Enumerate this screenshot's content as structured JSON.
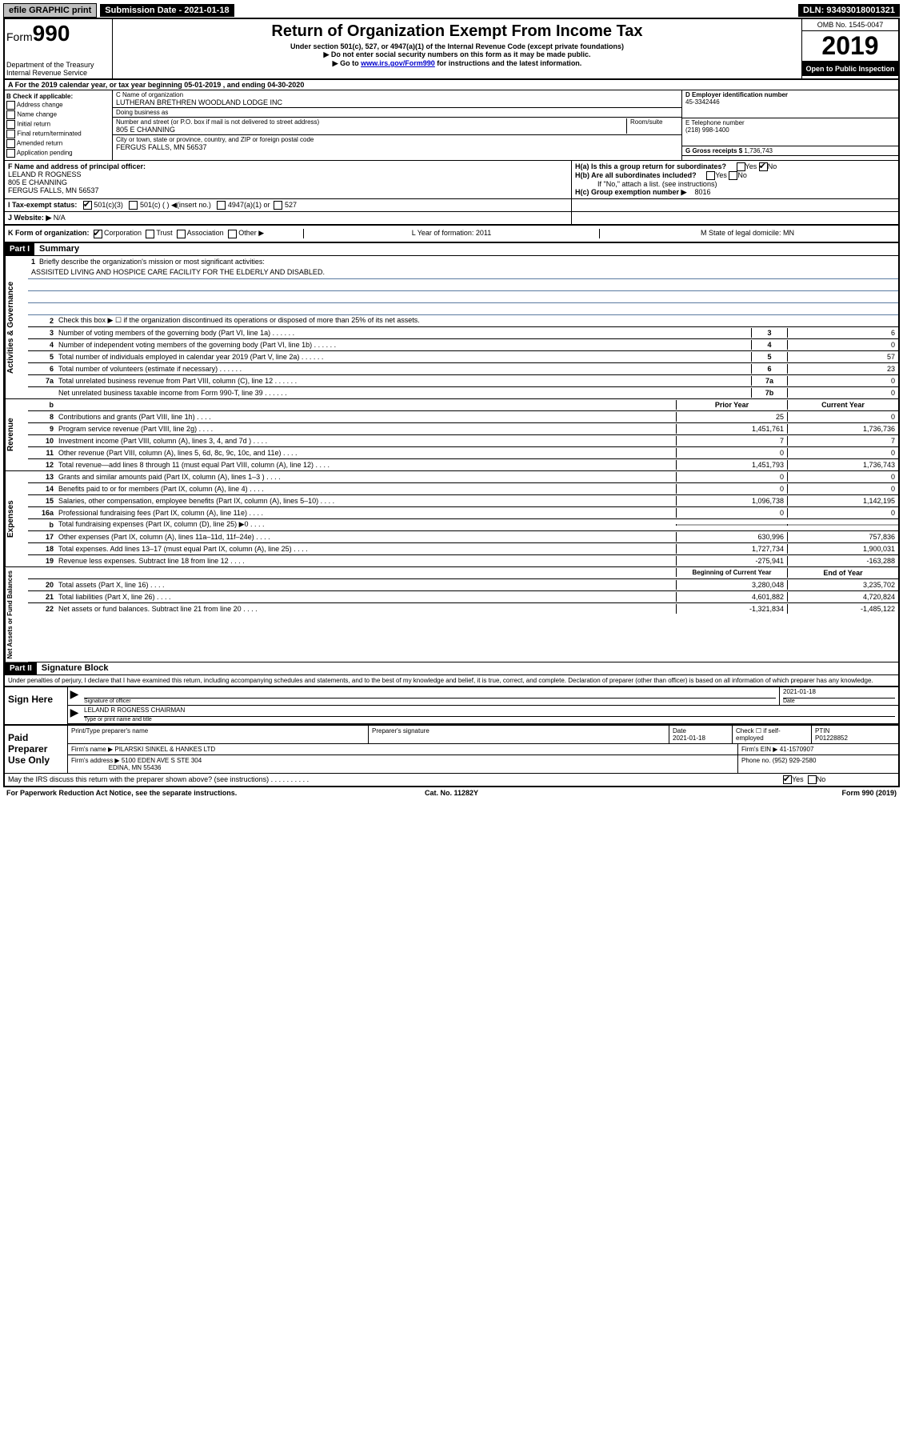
{
  "top": {
    "efile": "efile GRAPHIC print",
    "submission": "Submission Date - 2021-01-18",
    "dln": "DLN: 93493018001321"
  },
  "header": {
    "form_prefix": "Form",
    "form_number": "990",
    "title": "Return of Organization Exempt From Income Tax",
    "subtitle1": "Under section 501(c), 527, or 4947(a)(1) of the Internal Revenue Code (except private foundations)",
    "subtitle2": "▶ Do not enter social security numbers on this form as it may be made public.",
    "subtitle3_pre": "▶ Go to ",
    "subtitle3_link": "www.irs.gov/Form990",
    "subtitle3_post": " for instructions and the latest information.",
    "dept": "Department of the Treasury\nInternal Revenue Service",
    "omb": "OMB No. 1545-0047",
    "year": "2019",
    "open": "Open to Public Inspection"
  },
  "line_a": "A For the 2019 calendar year, or tax year beginning 05-01-2019    , and ending 04-30-2020",
  "b": {
    "label": "B Check if applicable:",
    "opts": [
      "Address change",
      "Name change",
      "Initial return",
      "Final return/terminated",
      "Amended return",
      "Application pending"
    ]
  },
  "c": {
    "name_label": "C Name of organization",
    "name": "LUTHERAN BRETHREN WOODLAND LODGE INC",
    "dba_label": "Doing business as",
    "dba": "",
    "addr_label": "Number and street (or P.O. box if mail is not delivered to street address)",
    "room_label": "Room/suite",
    "addr": "805 E CHANNING",
    "city_label": "City or town, state or province, country, and ZIP or foreign postal code",
    "city": "FERGUS FALLS, MN  56537"
  },
  "d": {
    "label": "D Employer identification number",
    "val": "45-3342446"
  },
  "e": {
    "label": "E Telephone number",
    "val": "(218) 998-1400"
  },
  "g": {
    "label": "G Gross receipts $",
    "val": "1,736,743"
  },
  "f": {
    "label": "F  Name and address of principal officer:",
    "name": "LELAND R ROGNESS",
    "addr1": "805 E CHANNING",
    "addr2": "FERGUS FALLS, MN  56537"
  },
  "h": {
    "a": "H(a)  Is this a group return for subordinates?",
    "b": "H(b)  Are all subordinates included?",
    "note": "If \"No,\" attach a list. (see instructions)",
    "c": "H(c)  Group exemption number ▶",
    "c_val": "8016"
  },
  "checks": {
    "yes": "Yes",
    "no": "No"
  },
  "i": {
    "label": "I    Tax-exempt status:",
    "opt1": "501(c)(3)",
    "opt2": "501(c) (  ) ◀(insert no.)",
    "opt3": "4947(a)(1) or",
    "opt4": "527"
  },
  "j": {
    "label": "J    Website: ▶",
    "val": "N/A"
  },
  "k": {
    "label": "K Form of organization:",
    "opts": [
      "Corporation",
      "Trust",
      "Association",
      "Other ▶"
    ],
    "l": "L Year of formation: 2011",
    "m": "M State of legal domicile: MN"
  },
  "part1": {
    "header": "Part I",
    "title": "Summary",
    "line1": "Briefly describe the organization's mission or most significant activities:",
    "mission": "ASSISITED LIVING AND HOSPICE CARE FACILITY FOR THE ELDERLY AND DISABLED.",
    "line2": "Check this box ▶ ☐  if the organization discontinued its operations or disposed of more than 25% of its net assets.",
    "rows_gov": [
      {
        "n": "3",
        "d": "Number of voting members of the governing body (Part VI, line 1a)",
        "k": "3",
        "v": "6"
      },
      {
        "n": "4",
        "d": "Number of independent voting members of the governing body (Part VI, line 1b)",
        "k": "4",
        "v": "0"
      },
      {
        "n": "5",
        "d": "Total number of individuals employed in calendar year 2019 (Part V, line 2a)",
        "k": "5",
        "v": "57"
      },
      {
        "n": "6",
        "d": "Total number of volunteers (estimate if necessary)",
        "k": "6",
        "v": "23"
      },
      {
        "n": "7a",
        "d": "Total unrelated business revenue from Part VIII, column (C), line 12",
        "k": "7a",
        "v": "0"
      },
      {
        "n": "",
        "d": "Net unrelated business taxable income from Form 990-T, line 39",
        "k": "7b",
        "v": "0"
      }
    ],
    "col_prior": "Prior Year",
    "col_current": "Current Year",
    "rows_rev": [
      {
        "n": "8",
        "d": "Contributions and grants (Part VIII, line 1h)",
        "p": "25",
        "c": "0"
      },
      {
        "n": "9",
        "d": "Program service revenue (Part VIII, line 2g)",
        "p": "1,451,761",
        "c": "1,736,736"
      },
      {
        "n": "10",
        "d": "Investment income (Part VIII, column (A), lines 3, 4, and 7d )",
        "p": "7",
        "c": "7"
      },
      {
        "n": "11",
        "d": "Other revenue (Part VIII, column (A), lines 5, 6d, 8c, 9c, 10c, and 11e)",
        "p": "0",
        "c": "0"
      },
      {
        "n": "12",
        "d": "Total revenue—add lines 8 through 11 (must equal Part VIII, column (A), line 12)",
        "p": "1,451,793",
        "c": "1,736,743"
      }
    ],
    "rows_exp": [
      {
        "n": "13",
        "d": "Grants and similar amounts paid (Part IX, column (A), lines 1–3 )",
        "p": "0",
        "c": "0"
      },
      {
        "n": "14",
        "d": "Benefits paid to or for members (Part IX, column (A), line 4)",
        "p": "0",
        "c": "0"
      },
      {
        "n": "15",
        "d": "Salaries, other compensation, employee benefits (Part IX, column (A), lines 5–10)",
        "p": "1,096,738",
        "c": "1,142,195"
      },
      {
        "n": "16a",
        "d": "Professional fundraising fees (Part IX, column (A), line 11e)",
        "p": "0",
        "c": "0"
      },
      {
        "n": "b",
        "d": "Total fundraising expenses (Part IX, column (D), line 25) ▶0",
        "p": "",
        "c": "",
        "shaded": true
      },
      {
        "n": "17",
        "d": "Other expenses (Part IX, column (A), lines 11a–11d, 11f–24e)",
        "p": "630,996",
        "c": "757,836"
      },
      {
        "n": "18",
        "d": "Total expenses. Add lines 13–17 (must equal Part IX, column (A), line 25)",
        "p": "1,727,734",
        "c": "1,900,031"
      },
      {
        "n": "19",
        "d": "Revenue less expenses. Subtract line 18 from line 12",
        "p": "-275,941",
        "c": "-163,288"
      }
    ],
    "col_begin": "Beginning of Current Year",
    "col_end": "End of Year",
    "rows_net": [
      {
        "n": "20",
        "d": "Total assets (Part X, line 16)",
        "p": "3,280,048",
        "c": "3,235,702"
      },
      {
        "n": "21",
        "d": "Total liabilities (Part X, line 26)",
        "p": "4,601,882",
        "c": "4,720,824"
      },
      {
        "n": "22",
        "d": "Net assets or fund balances. Subtract line 21 from line 20",
        "p": "-1,321,834",
        "c": "-1,485,122"
      }
    ],
    "side_gov": "Activities & Governance",
    "side_rev": "Revenue",
    "side_exp": "Expenses",
    "side_net": "Net Assets or Fund Balances"
  },
  "part2": {
    "header": "Part II",
    "title": "Signature Block",
    "perjury": "Under penalties of perjury, I declare that I have examined this return, including accompanying schedules and statements, and to the best of my knowledge and belief, it is true, correct, and complete. Declaration of preparer (other than officer) is based on all information of which preparer has any knowledge.",
    "sign_here": "Sign Here",
    "sig_officer": "Signature of officer",
    "sig_date": "2021-01-18",
    "date_label": "Date",
    "name_title": "LELAND R ROGNESS  CHAIRMAN",
    "name_title_label": "Type or print name and title",
    "paid": "Paid Preparer Use Only",
    "prep_name_label": "Print/Type preparer's name",
    "prep_sig_label": "Preparer's signature",
    "prep_date_label": "Date",
    "prep_date": "2021-01-18",
    "check_self": "Check ☐ if self-employed",
    "ptin_label": "PTIN",
    "ptin": "P01228852",
    "firm_name_label": "Firm's name      ▶",
    "firm_name": "PILARSKI SINKEL & HANKES LTD",
    "firm_ein_label": "Firm's EIN ▶",
    "firm_ein": "41-1570907",
    "firm_addr_label": "Firm's address ▶",
    "firm_addr1": "5100 EDEN AVE S STE 304",
    "firm_addr2": "EDINA, MN  55436",
    "phone_label": "Phone no.",
    "phone": "(952) 929-2580"
  },
  "footer": {
    "discuss": "May the IRS discuss this return with the preparer shown above? (see instructions)",
    "pra": "For Paperwork Reduction Act Notice, see the separate instructions.",
    "cat": "Cat. No. 11282Y",
    "form": "Form 990 (2019)"
  }
}
